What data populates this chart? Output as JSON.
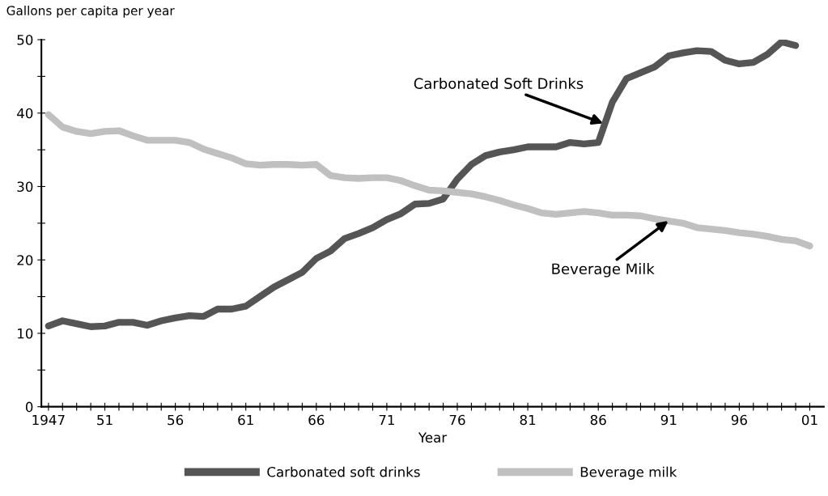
{
  "chart_data": {
    "type": "line",
    "ylabel": "Gallons per capita per year",
    "xlabel": "Year",
    "xlim": [
      1946.5,
      2002
    ],
    "ylim": [
      0,
      50
    ],
    "yticks": [
      0,
      {
        "value": 5,
        "label": null
      },
      10,
      {
        "value": 15,
        "label": null
      },
      20,
      {
        "value": 25,
        "label": null
      },
      30,
      {
        "value": 35,
        "label": null
      },
      40,
      {
        "value": 45,
        "label": null
      },
      50
    ],
    "xticks": [
      {
        "value": 1947,
        "label": "1947"
      },
      {
        "value": 1948,
        "label": null
      },
      {
        "value": 1949,
        "label": null
      },
      {
        "value": 1950,
        "label": null
      },
      {
        "value": 1951,
        "label": "51"
      },
      {
        "value": 1952,
        "label": null
      },
      {
        "value": 1953,
        "label": null
      },
      {
        "value": 1954,
        "label": null
      },
      {
        "value": 1955,
        "label": null
      },
      {
        "value": 1956,
        "label": "56"
      },
      {
        "value": 1957,
        "label": null
      },
      {
        "value": 1958,
        "label": null
      },
      {
        "value": 1959,
        "label": null
      },
      {
        "value": 1960,
        "label": null
      },
      {
        "value": 1961,
        "label": "61"
      },
      {
        "value": 1962,
        "label": null
      },
      {
        "value": 1963,
        "label": null
      },
      {
        "value": 1964,
        "label": null
      },
      {
        "value": 1965,
        "label": null
      },
      {
        "value": 1966,
        "label": "66"
      },
      {
        "value": 1967,
        "label": null
      },
      {
        "value": 1968,
        "label": null
      },
      {
        "value": 1969,
        "label": null
      },
      {
        "value": 1970,
        "label": null
      },
      {
        "value": 1971,
        "label": "71"
      },
      {
        "value": 1972,
        "label": null
      },
      {
        "value": 1973,
        "label": null
      },
      {
        "value": 1974,
        "label": null
      },
      {
        "value": 1975,
        "label": null
      },
      {
        "value": 1976,
        "label": "76"
      },
      {
        "value": 1977,
        "label": null
      },
      {
        "value": 1978,
        "label": null
      },
      {
        "value": 1979,
        "label": null
      },
      {
        "value": 1980,
        "label": null
      },
      {
        "value": 1981,
        "label": "81"
      },
      {
        "value": 1982,
        "label": null
      },
      {
        "value": 1983,
        "label": null
      },
      {
        "value": 1984,
        "label": null
      },
      {
        "value": 1985,
        "label": null
      },
      {
        "value": 1986,
        "label": "86"
      },
      {
        "value": 1987,
        "label": null
      },
      {
        "value": 1988,
        "label": null
      },
      {
        "value": 1989,
        "label": null
      },
      {
        "value": 1990,
        "label": null
      },
      {
        "value": 1991,
        "label": "91"
      },
      {
        "value": 1992,
        "label": null
      },
      {
        "value": 1993,
        "label": null
      },
      {
        "value": 1994,
        "label": null
      },
      {
        "value": 1995,
        "label": null
      },
      {
        "value": 1996,
        "label": "96"
      },
      {
        "value": 1997,
        "label": null
      },
      {
        "value": 1998,
        "label": null
      },
      {
        "value": 1999,
        "label": null
      },
      {
        "value": 2000,
        "label": null
      },
      {
        "value": 2001,
        "label": "01"
      }
    ],
    "series": [
      {
        "name": "Carbonated soft drinks",
        "color": "#555555",
        "x": [
          1947,
          1948,
          1949,
          1950,
          1951,
          1952,
          1953,
          1954,
          1955,
          1956,
          1957,
          1958,
          1959,
          1960,
          1961,
          1962,
          1963,
          1964,
          1965,
          1966,
          1967,
          1968,
          1969,
          1970,
          1971,
          1972,
          1973,
          1974,
          1975,
          1976,
          1977,
          1978,
          1979,
          1980,
          1981,
          1982,
          1983,
          1984,
          1985,
          1986,
          1987,
          1988,
          1989,
          1990,
          1991,
          1992,
          1993,
          1994,
          1995,
          1996,
          1997,
          1998,
          1999,
          2000
        ],
        "values": [
          11.0,
          11.7,
          11.3,
          10.9,
          11.0,
          11.5,
          11.5,
          11.1,
          11.7,
          12.1,
          12.4,
          12.3,
          13.3,
          13.3,
          13.7,
          15.0,
          16.3,
          17.3,
          18.3,
          20.2,
          21.2,
          22.9,
          23.6,
          24.4,
          25.5,
          26.3,
          27.6,
          27.7,
          28.3,
          31.0,
          33.0,
          34.2,
          34.7,
          35.0,
          35.4,
          35.4,
          35.4,
          36.0,
          35.8,
          36.0,
          41.5,
          44.7,
          45.5,
          46.3,
          47.8,
          48.2,
          48.5,
          48.4,
          47.2,
          46.7,
          46.9,
          48.0,
          49.7,
          49.2
        ]
      },
      {
        "name": "Beverage milk",
        "color": "#c0c0c0",
        "x": [
          1947,
          1948,
          1949,
          1950,
          1951,
          1952,
          1953,
          1954,
          1955,
          1956,
          1957,
          1958,
          1959,
          1960,
          1961,
          1962,
          1963,
          1964,
          1965,
          1966,
          1967,
          1968,
          1969,
          1970,
          1971,
          1972,
          1973,
          1974,
          1975,
          1976,
          1977,
          1978,
          1979,
          1980,
          1981,
          1982,
          1983,
          1984,
          1985,
          1986,
          1987,
          1988,
          1989,
          1990,
          1991,
          1992,
          1993,
          1994,
          1995,
          1996,
          1997,
          1998,
          1999,
          2000,
          2001
        ],
        "values": [
          39.8,
          38.1,
          37.5,
          37.2,
          37.5,
          37.6,
          36.9,
          36.3,
          36.3,
          36.3,
          36.0,
          35.1,
          34.5,
          33.9,
          33.1,
          32.9,
          33.0,
          33.0,
          32.9,
          33.0,
          31.5,
          31.2,
          31.1,
          31.2,
          31.2,
          30.8,
          30.1,
          29.5,
          29.4,
          29.2,
          29.0,
          28.6,
          28.1,
          27.5,
          27.0,
          26.4,
          26.2,
          26.4,
          26.6,
          26.4,
          26.1,
          26.1,
          26.0,
          25.6,
          25.3,
          25.0,
          24.4,
          24.2,
          24.0,
          23.7,
          23.5,
          23.2,
          22.8,
          22.6,
          21.9
        ]
      }
    ],
    "annotations": [
      {
        "text": "Carbonated Soft Drinks",
        "x": 1986.5,
        "y": 38.5
      },
      {
        "text": "Beverage Milk",
        "x": 1991.1,
        "y": 25.5
      }
    ],
    "legend": "bottom",
    "grid": false,
    "marker": "none",
    "line_style": "solid"
  }
}
